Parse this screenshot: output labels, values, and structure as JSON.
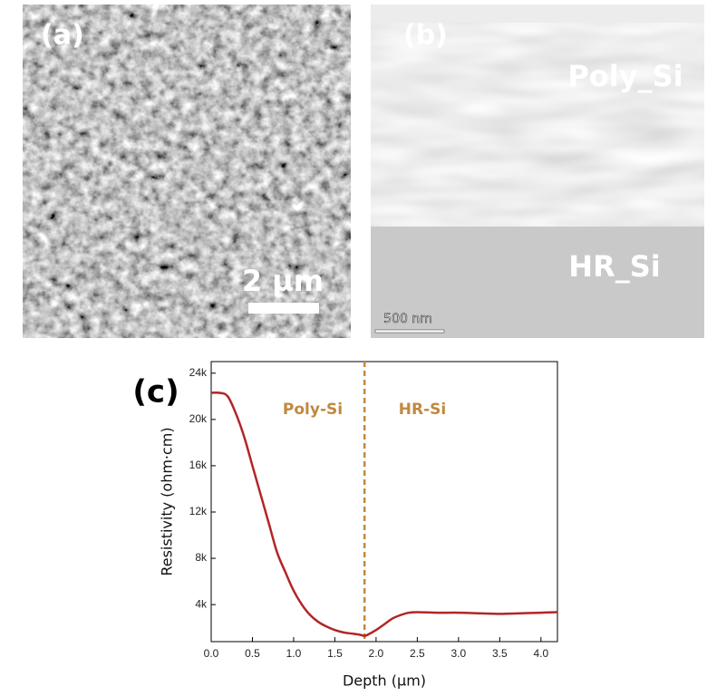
{
  "panels": {
    "a": {
      "label": "(a)",
      "scale_bar": "2 µm"
    },
    "b": {
      "label": "(b)",
      "top_layer": "Poly_Si",
      "bottom_layer": "HR_Si",
      "scale_bar": "500 nm"
    }
  },
  "chart_data": {
    "type": "line",
    "label": "(c)",
    "x_label": "Depth (µm)",
    "y_label": "Resistivity (ohm·cm)",
    "annotations": [
      "Poly-Si",
      "HR-Si"
    ],
    "divider_x": 1.86,
    "divider_color": "#c0893f",
    "x": [
      0,
      0.1,
      0.2,
      0.3,
      0.4,
      0.5,
      0.6,
      0.7,
      0.8,
      0.9,
      1.0,
      1.1,
      1.2,
      1.3,
      1.4,
      1.5,
      1.6,
      1.7,
      1.8,
      1.86,
      1.9,
      2.0,
      2.1,
      2.2,
      2.3,
      2.4,
      2.5,
      2.75,
      3.0,
      3.25,
      3.5,
      3.75,
      4.0,
      4.2
    ],
    "values": [
      22300,
      22300,
      22000,
      20500,
      18500,
      16000,
      13500,
      11000,
      8500,
      6800,
      5200,
      4000,
      3100,
      2500,
      2100,
      1800,
      1600,
      1500,
      1400,
      1300,
      1400,
      1800,
      2300,
      2800,
      3100,
      3300,
      3350,
      3300,
      3300,
      3250,
      3200,
      3250,
      3300,
      3350
    ],
    "color": "#b32525",
    "xlim": [
      0,
      4.2
    ],
    "ylim": [
      800,
      25000
    ],
    "xticks": [
      {
        "value": 0,
        "label": "0.0"
      },
      0.5,
      {
        "value": 1,
        "label": "1.0"
      },
      1.5,
      {
        "value": 2,
        "label": "2.0"
      },
      2.5,
      {
        "value": 3,
        "label": "3.0"
      },
      3.5,
      {
        "value": 4,
        "label": "4.0"
      }
    ],
    "yticks": [
      {
        "value": 4000,
        "label": "4k"
      },
      {
        "value": 8000,
        "label": "8k"
      },
      {
        "value": 12000,
        "label": "12k"
      },
      {
        "value": 16000,
        "label": "16k"
      },
      {
        "value": 20000,
        "label": "20k"
      },
      {
        "value": 24000,
        "label": "24k"
      }
    ]
  }
}
